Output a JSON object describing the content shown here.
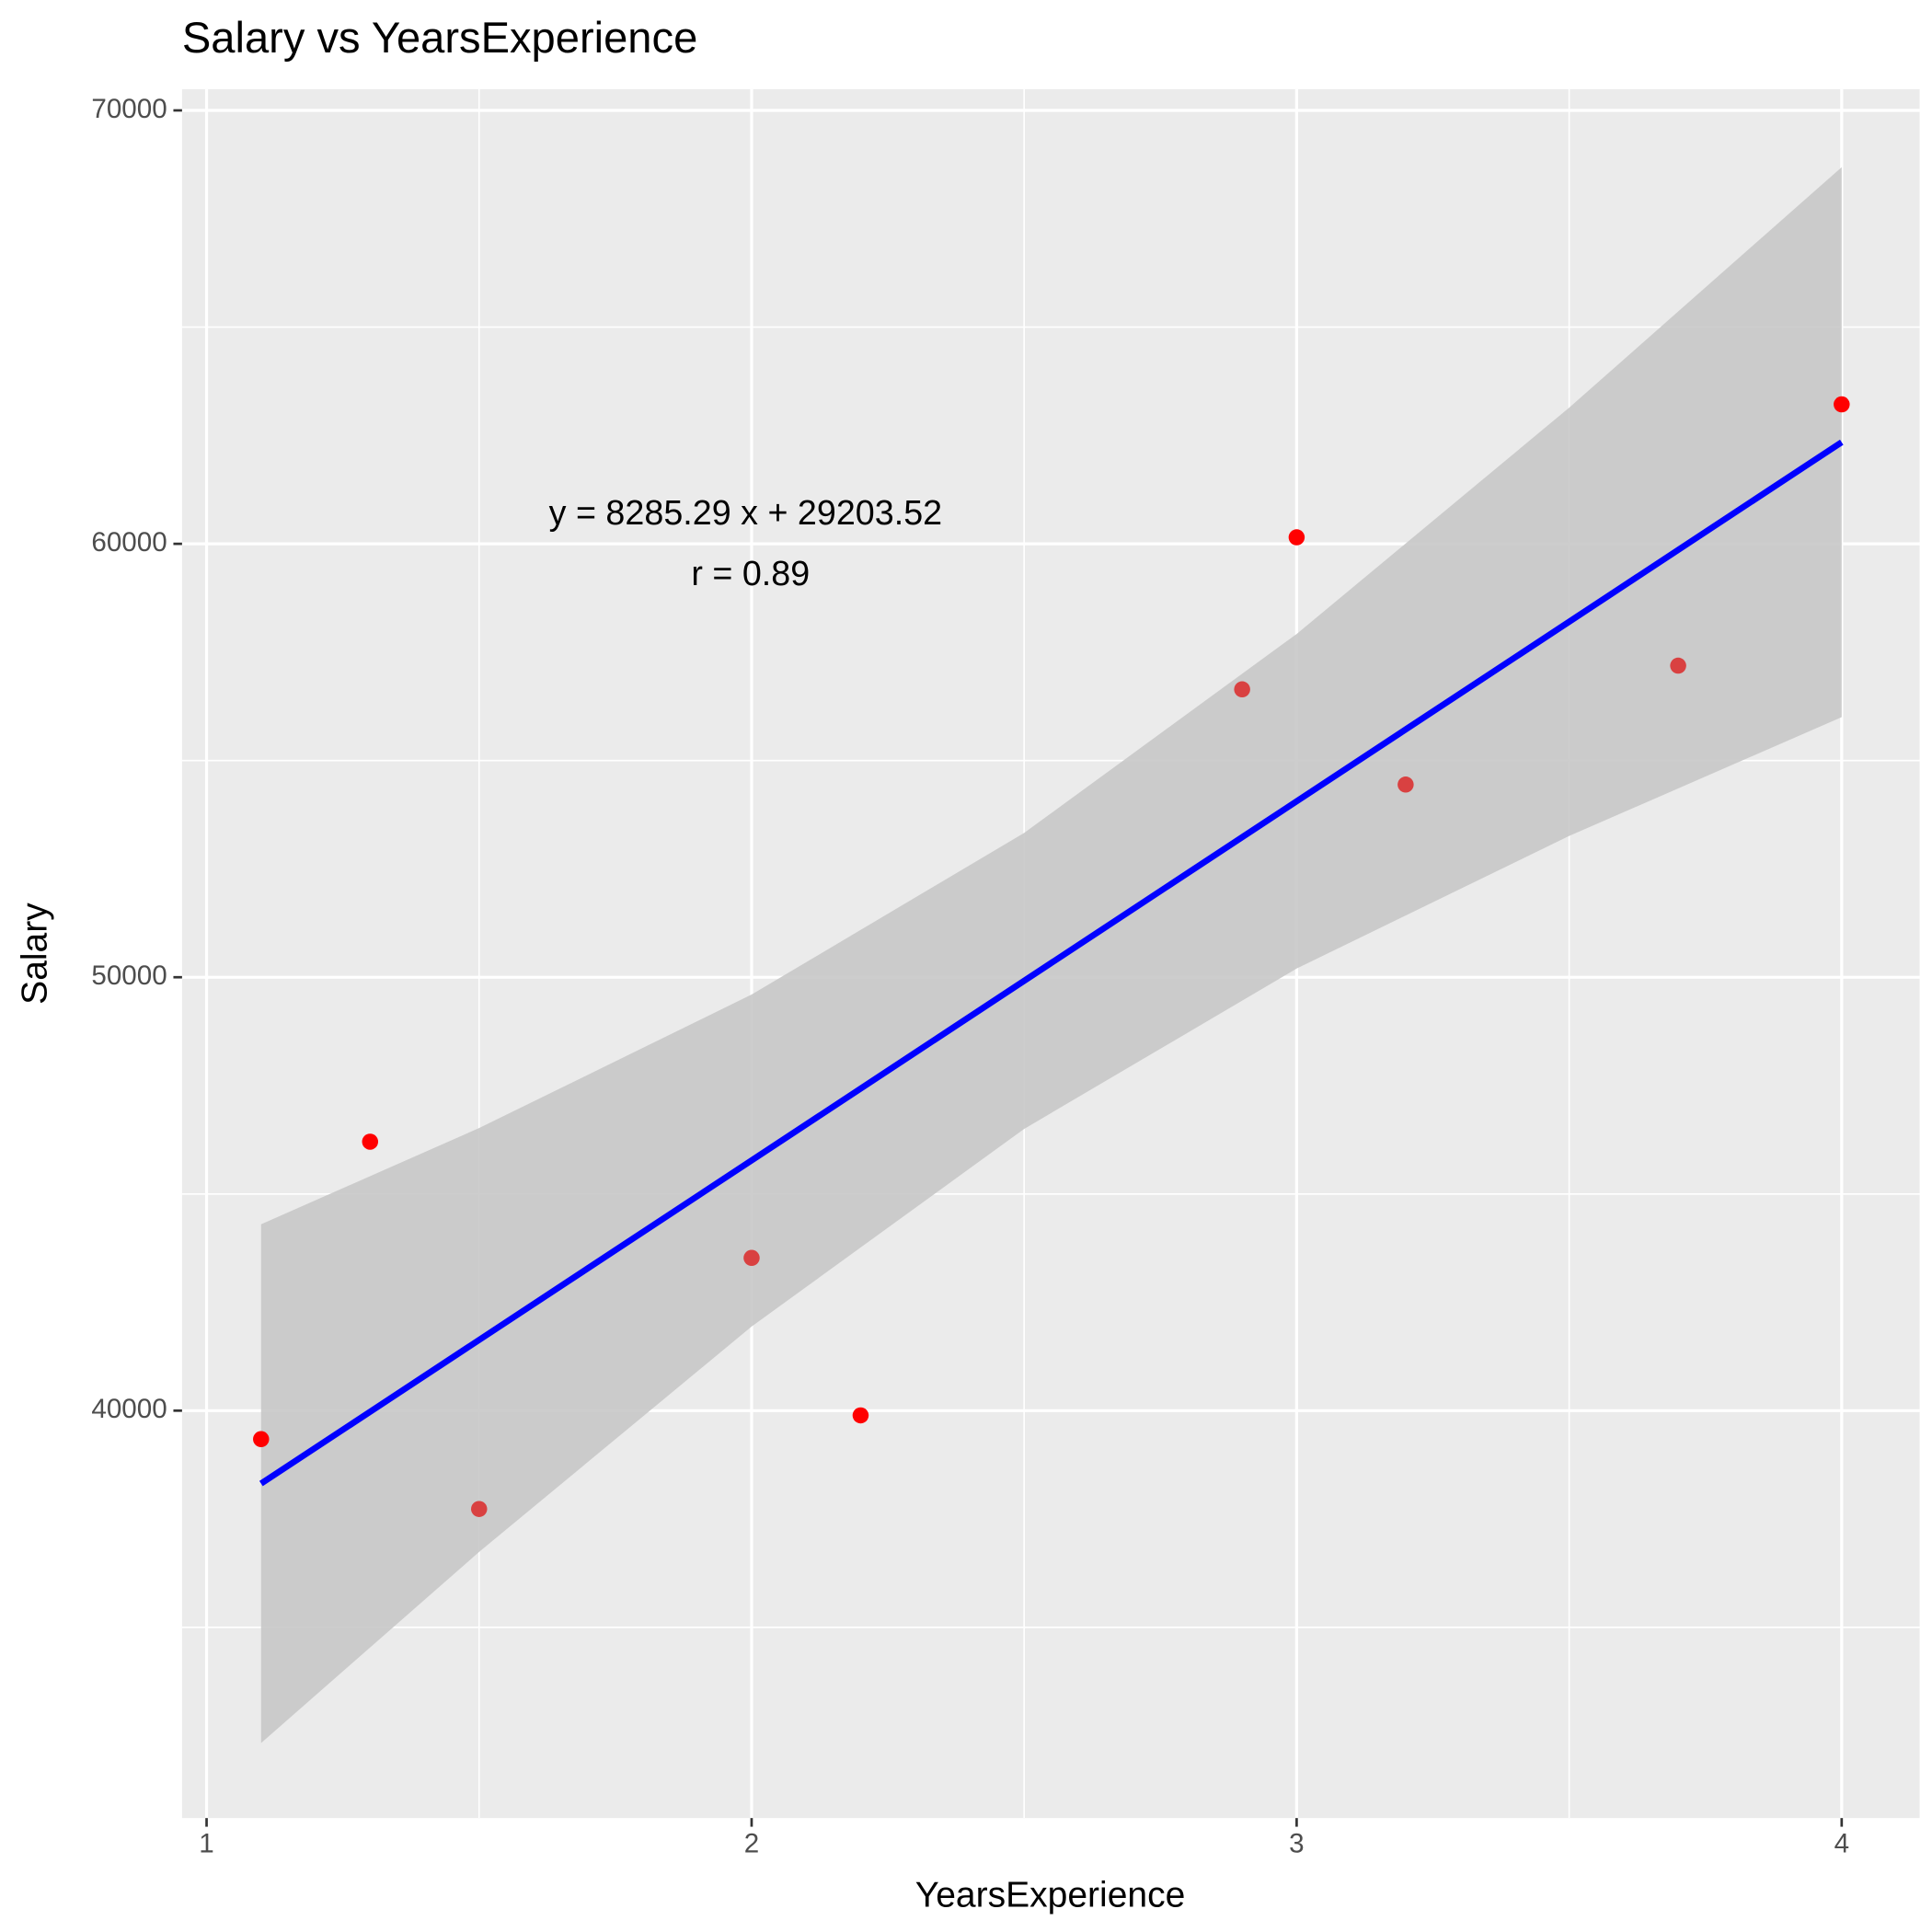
{
  "chart_data": {
    "type": "scatter",
    "title": "Salary vs YearsExperience",
    "x_label": "YearsExperience",
    "y_label": "Salary",
    "annotations": [
      "y = 8285.29 x + 29203.52",
      "r = 0.89"
    ],
    "x": [
      1.1,
      1.3,
      1.5,
      2.0,
      2.2,
      2.9,
      3.0,
      3.2,
      3.7,
      4.0
    ],
    "series": [
      {
        "values": [
          39343,
          46205,
          37731,
          43525,
          39891,
          56642,
          60150,
          54445,
          57189,
          63218
        ],
        "colors": [
          "#ff0000",
          "#ff0000",
          "#d94141",
          "#d94141",
          "#ff0000",
          "#d94141",
          "#ff0000",
          "#d94141",
          "#d94141",
          "#ff0000"
        ]
      }
    ],
    "fit": {
      "color": "#0000ff",
      "x": [
        1.1,
        4.0
      ],
      "values": [
        38317,
        62345
      ]
    },
    "band": {
      "color": "#c8c8c8",
      "x": [
        1.1,
        1.5,
        2.0,
        2.5,
        3.0,
        3.5,
        4.0
      ],
      "lower": [
        32330,
        36740,
        41940,
        46500,
        50200,
        53260,
        56000
      ],
      "upper": [
        44300,
        46520,
        49600,
        53330,
        57920,
        63140,
        68690
      ]
    },
    "xlim": [
      0.955,
      4.143
    ],
    "ylim": [
      30600,
      70490
    ],
    "xticks": [
      1,
      2,
      3,
      4
    ],
    "yticks": [
      40000,
      50000,
      60000,
      70000
    ],
    "xminor": [
      1.5,
      2.5,
      3.5
    ],
    "yminor": [
      35000,
      45000,
      55000,
      65000
    ],
    "grid": true
  }
}
